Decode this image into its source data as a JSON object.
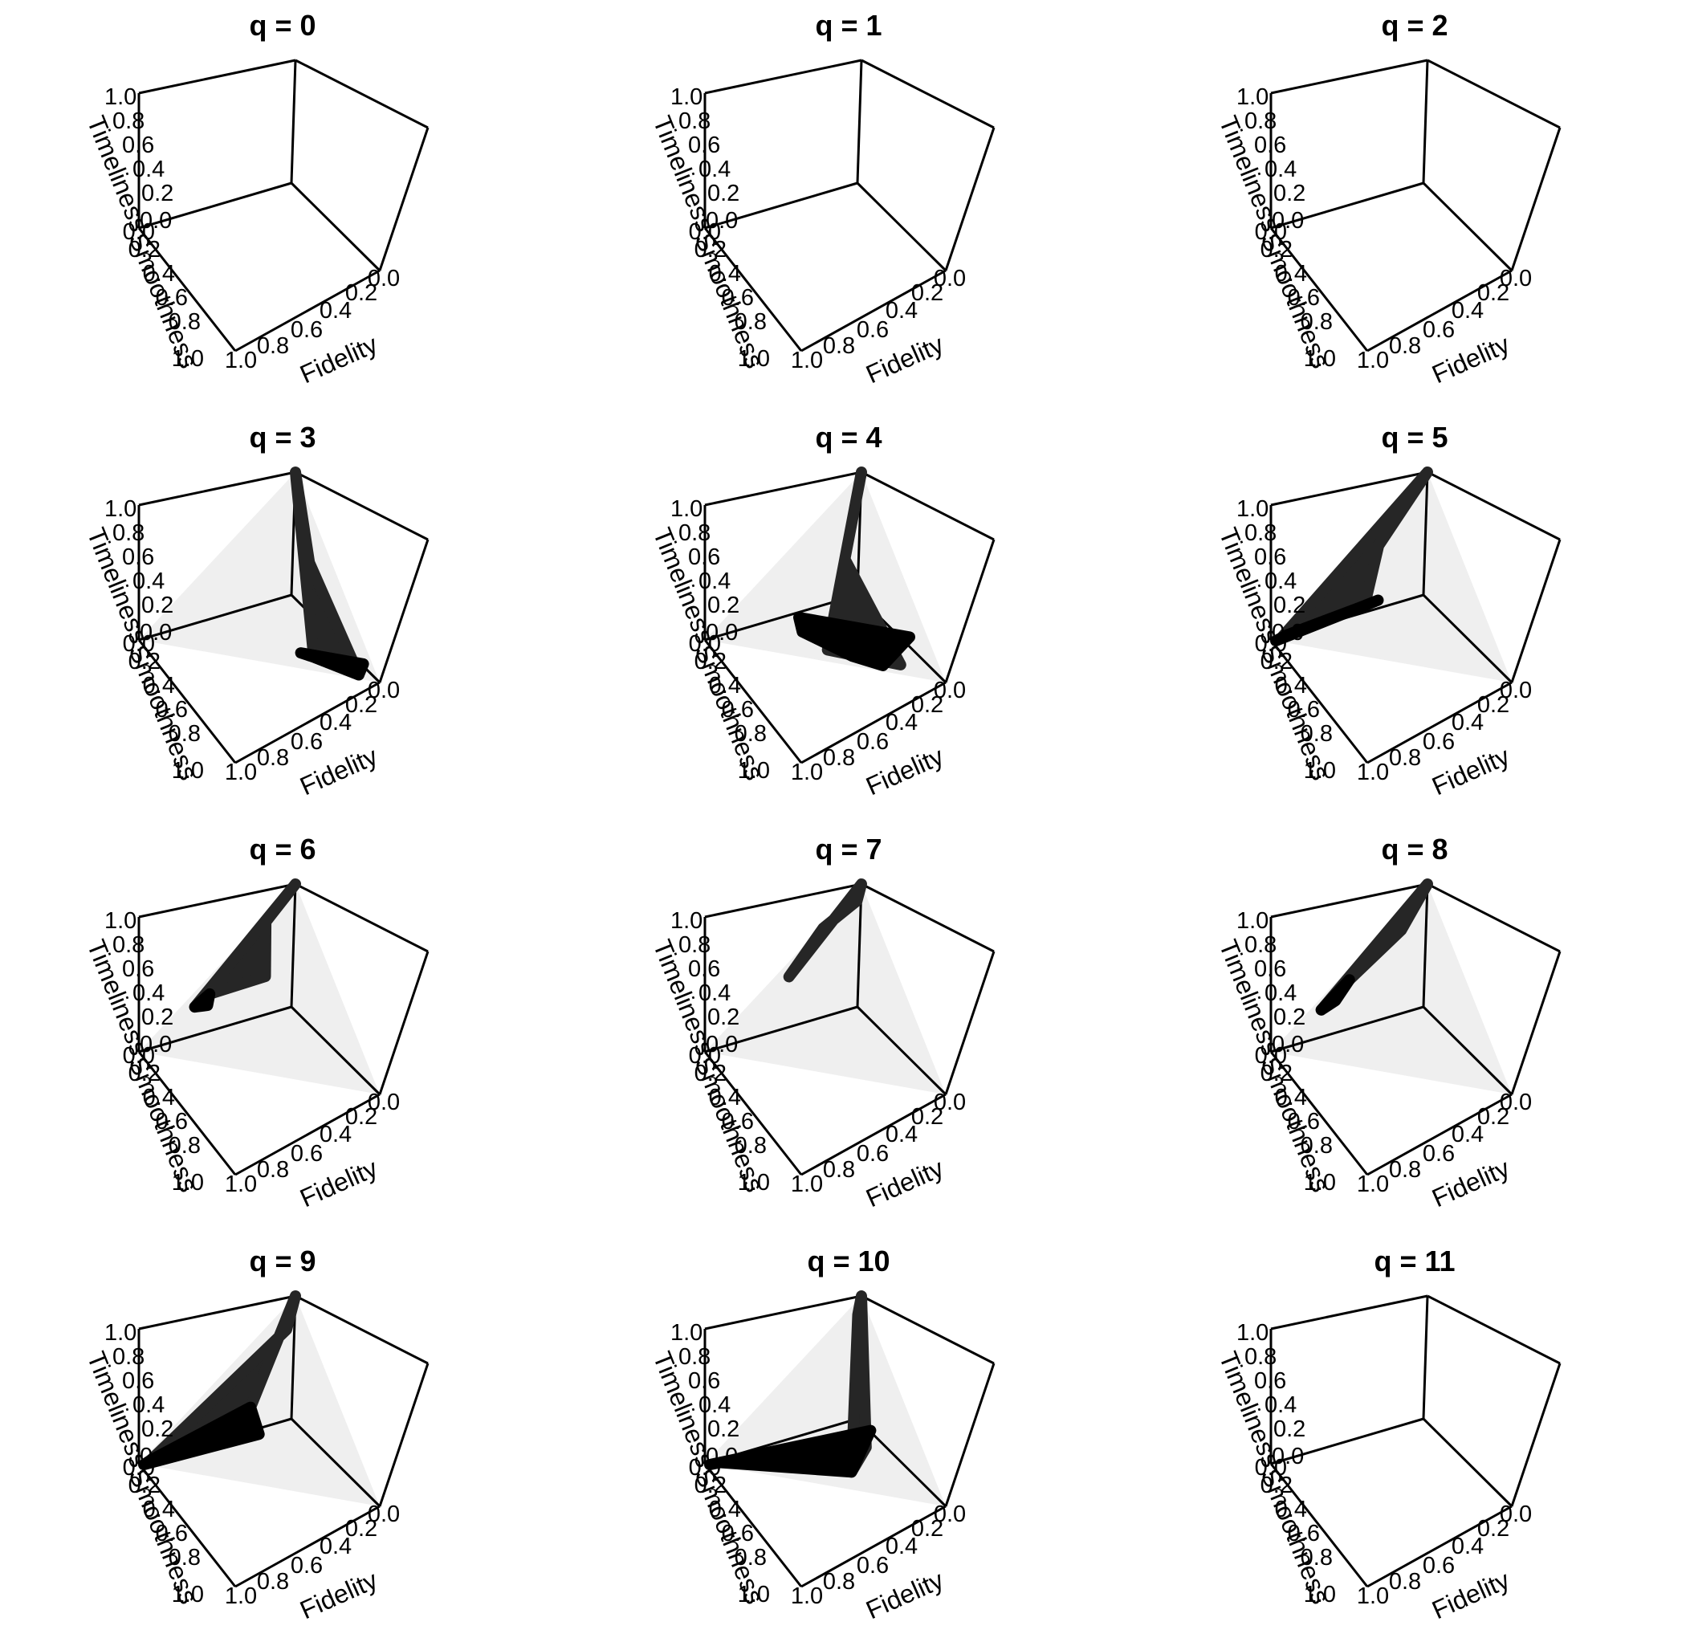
{
  "chart_data": {
    "type": "3d-surface",
    "layout": "4x3 grid of 3D perspective plots",
    "axis_labels": {
      "x": "Fidelity",
      "y": "Smoothness",
      "z": "Timeliness"
    },
    "axis_ticks": [
      "0.0",
      "0.2",
      "0.4",
      "0.6",
      "0.8",
      "1.0"
    ],
    "axis_range": [
      0,
      1
    ],
    "colors": {
      "surface_front": "#000000",
      "surface_back": "#262626",
      "simplex": "#efefef",
      "frame": "#000000"
    },
    "panels": [
      {
        "title": "q = 0",
        "simplex_shown": false,
        "regions": []
      },
      {
        "title": "q = 1",
        "simplex_shown": false,
        "regions": []
      },
      {
        "title": "q = 2",
        "simplex_shown": false,
        "regions": []
      },
      {
        "title": "q = 3",
        "simplex_shown": true,
        "regions": [
          {
            "shade": "back",
            "points": [
              [
                0,
                0,
                1
              ],
              [
                0.68,
                0.25,
                0.07
              ],
              [
                0.9,
                0.08,
                0.02
              ],
              [
                0.35,
                0.1,
                0.55
              ]
            ]
          },
          {
            "shade": "front",
            "points": [
              [
                0.68,
                0.25,
                0.07
              ],
              [
                0.9,
                0.08,
                0.02
              ],
              [
                0.88,
                0.04,
                0.08
              ],
              [
                0.62,
                0.3,
                0.08
              ]
            ]
          }
        ]
      },
      {
        "title": "q = 4",
        "simplex_shown": true,
        "regions": [
          {
            "shade": "back",
            "points": [
              [
                0,
                0,
                1
              ],
              [
                0.47,
                0.47,
                0.06
              ],
              [
                0.78,
                0.17,
                0.05
              ],
              [
                0.23,
                0.23,
                0.54
              ]
            ]
          },
          {
            "shade": "front",
            "points": [
              [
                0.58,
                0.37,
                0.05
              ],
              [
                0.72,
                0.25,
                0.03
              ],
              [
                0.72,
                0.08,
                0.2
              ],
              [
                0.4,
                0.4,
                0.2
              ],
              [
                0.26,
                0.54,
                0.2
              ],
              [
                0.32,
                0.55,
                0.13
              ]
            ]
          }
        ]
      },
      {
        "title": "q = 5",
        "simplex_shown": true,
        "regions": [
          {
            "shade": "back",
            "points": [
              [
                0,
                0,
                1
              ],
              [
                0.03,
                0.94,
                0.03
              ],
              [
                0.22,
                0.52,
                0.26
              ],
              [
                0.07,
                0.35,
                0.58
              ]
            ]
          },
          {
            "shade": "front",
            "points": [
              [
                0.22,
                0.52,
                0.26
              ],
              [
                0.04,
                0.92,
                0.04
              ],
              [
                0.02,
                0.98,
                0
              ],
              [
                0.25,
                0.45,
                0.3
              ]
            ]
          }
        ]
      },
      {
        "title": "q = 6",
        "simplex_shown": true,
        "regions": [
          {
            "shade": "back",
            "points": [
              [
                0,
                0,
                1
              ],
              [
                0.05,
                0.67,
                0.28
              ],
              [
                0.06,
                0.58,
                0.36
              ],
              [
                0.2,
                0.3,
                0.5
              ],
              [
                0.02,
                0.2,
                0.78
              ]
            ]
          },
          {
            "shade": "front",
            "points": [
              [
                0.06,
                0.58,
                0.36
              ],
              [
                0.05,
                0.67,
                0.28
              ],
              [
                0.09,
                0.61,
                0.3
              ]
            ]
          }
        ]
      },
      {
        "title": "q = 7",
        "simplex_shown": true,
        "regions": [
          {
            "shade": "back",
            "points": [
              [
                0,
                0,
                1
              ],
              [
                0.05,
                0.49,
                0.46
              ],
              [
                0.01,
                0.25,
                0.74
              ],
              [
                0.04,
                0.05,
                0.91
              ]
            ]
          }
        ]
      },
      {
        "title": "q = 8",
        "simplex_shown": true,
        "regions": [
          {
            "shade": "back",
            "points": [
              [
                0,
                0,
                1
              ],
              [
                0.04,
                0.7,
                0.26
              ],
              [
                0.04,
                0.52,
                0.44
              ],
              [
                0.06,
                0.2,
                0.74
              ]
            ]
          },
          {
            "shade": "front",
            "points": [
              [
                0.04,
                0.52,
                0.44
              ],
              [
                0.04,
                0.7,
                0.26
              ],
              [
                0.06,
                0.62,
                0.32
              ]
            ]
          }
        ]
      },
      {
        "title": "q = 9",
        "simplex_shown": true,
        "regions": [
          {
            "shade": "back",
            "points": [
              [
                0,
                0,
                1
              ],
              [
                0.21,
                0.4,
                0.39
              ],
              [
                0.03,
                0.94,
                0.03
              ],
              [
                0.08,
                0.1,
                0.82
              ]
            ]
          },
          {
            "shade": "front",
            "points": [
              [
                0.21,
                0.4,
                0.39
              ],
              [
                0.33,
                0.41,
                0.26
              ],
              [
                0.02,
                0.98,
                0
              ],
              [
                0.03,
                0.94,
                0.03
              ]
            ]
          }
        ]
      },
      {
        "title": "q = 10",
        "simplex_shown": true,
        "regions": [
          {
            "shade": "back",
            "points": [
              [
                0,
                0,
                1
              ],
              [
                0.52,
                0.25,
                0.23
              ],
              [
                0.55,
                0.36,
                0.09
              ],
              [
                0.05,
                0.05,
                0.9
              ]
            ]
          },
          {
            "shade": "front",
            "points": [
              [
                0.55,
                0.36,
                0.09
              ],
              [
                0.48,
                0.2,
                0.32
              ],
              [
                0.02,
                0.98,
                0
              ],
              [
                0.05,
                0.93,
                0.02
              ]
            ]
          }
        ]
      },
      {
        "title": "q = 11",
        "simplex_shown": false,
        "regions": []
      }
    ]
  }
}
